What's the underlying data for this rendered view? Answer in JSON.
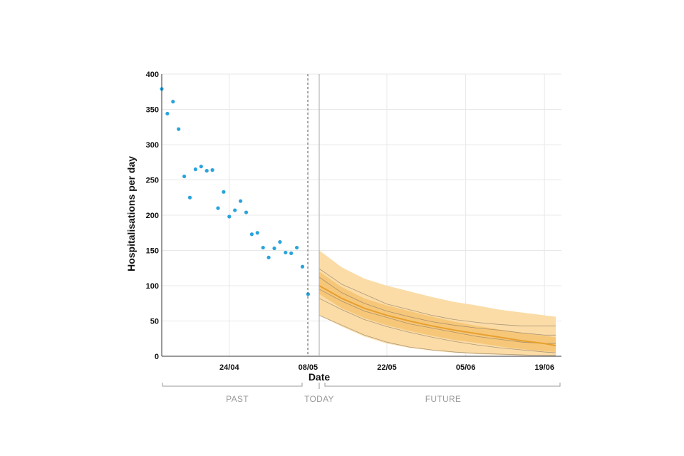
{
  "chart_data": {
    "type": "scatter",
    "title": "",
    "ylabel": "Hospitalisations per day",
    "xlabel": "Date",
    "ylim": [
      0,
      400
    ],
    "y_ticks": [
      0,
      50,
      100,
      150,
      200,
      250,
      300,
      350,
      400
    ],
    "x_tick_labels": [
      "24/04",
      "08/05",
      "22/05",
      "05/06",
      "19/06"
    ],
    "grid": true,
    "today_label": "TODAY",
    "past_label": "PAST",
    "future_label": "FUTURE",
    "colors": {
      "observed": "#2aa3dc",
      "forecast_line": "#e6a02e",
      "band_outer": "#fbdca6",
      "band_inner": "#f6c06a",
      "sample_lines": "#8a7a66",
      "grid": "#e8e8e8"
    },
    "observed": [
      {
        "day": 0,
        "value": 379
      },
      {
        "day": 1,
        "value": 344
      },
      {
        "day": 2,
        "value": 361
      },
      {
        "day": 3,
        "value": 322
      },
      {
        "day": 4,
        "value": 255
      },
      {
        "day": 5,
        "value": 225
      },
      {
        "day": 6,
        "value": 265
      },
      {
        "day": 7,
        "value": 269
      },
      {
        "day": 8,
        "value": 263
      },
      {
        "day": 9,
        "value": 264
      },
      {
        "day": 10,
        "value": 210
      },
      {
        "day": 11,
        "value": 233
      },
      {
        "day": 12,
        "value": 198
      },
      {
        "day": 13,
        "value": 207
      },
      {
        "day": 14,
        "value": 220
      },
      {
        "day": 15,
        "value": 204
      },
      {
        "day": 16,
        "value": 173
      },
      {
        "day": 17,
        "value": 175
      },
      {
        "day": 18,
        "value": 154
      },
      {
        "day": 19,
        "value": 140
      },
      {
        "day": 20,
        "value": 153
      },
      {
        "day": 21,
        "value": 162
      },
      {
        "day": 22,
        "value": 147
      },
      {
        "day": 23,
        "value": 146
      },
      {
        "day": 24,
        "value": 154
      },
      {
        "day": 25,
        "value": 127
      },
      {
        "day": 26,
        "value": 88
      }
    ],
    "forecast": {
      "days": [
        28,
        32,
        36,
        40,
        44,
        48,
        52,
        56,
        60,
        64,
        68,
        70
      ],
      "median": [
        100,
        82,
        68,
        58,
        50,
        43,
        37,
        32,
        27,
        22,
        18,
        15
      ],
      "outer_upper": [
        150,
        126,
        110,
        100,
        92,
        84,
        77,
        72,
        66,
        62,
        58,
        56
      ],
      "outer_lower": [
        58,
        42,
        28,
        18,
        12,
        8,
        5,
        3,
        2,
        1,
        1,
        1
      ],
      "inner_upper": [
        120,
        98,
        82,
        72,
        64,
        56,
        49,
        43,
        38,
        33,
        29,
        27
      ],
      "inner_lower": [
        88,
        68,
        54,
        44,
        36,
        29,
        23,
        19,
        14,
        10,
        7,
        6
      ],
      "samples": [
        [
          124,
          102,
          88,
          74,
          66,
          58,
          52,
          48,
          45,
          43,
          43,
          43
        ],
        [
          112,
          90,
          75,
          64,
          56,
          49,
          44,
          40,
          37,
          33,
          30,
          30
        ],
        [
          95,
          78,
          64,
          55,
          46,
          40,
          34,
          28,
          24,
          20,
          18,
          18
        ],
        [
          82,
          66,
          52,
          42,
          34,
          27,
          21,
          16,
          12,
          9,
          6,
          5
        ],
        [
          58,
          44,
          30,
          20,
          13,
          9,
          6,
          4,
          3,
          2,
          1,
          1
        ]
      ]
    }
  }
}
